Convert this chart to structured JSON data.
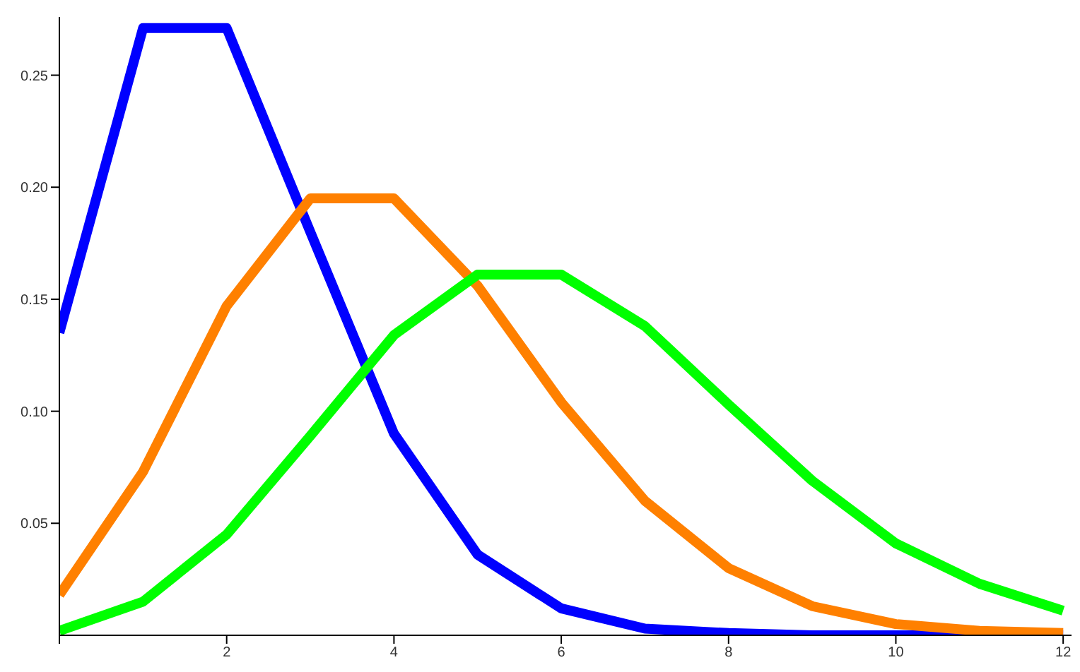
{
  "chart_data": {
    "type": "line",
    "x": [
      0,
      1,
      2,
      3,
      4,
      5,
      6,
      7,
      8,
      9,
      10,
      11,
      12
    ],
    "series": [
      {
        "color": "#0000ff",
        "values": [
          0.135,
          0.271,
          0.271,
          0.18,
          0.09,
          0.036,
          0.012,
          0.003,
          0.001,
          0.0,
          0.0,
          0.0,
          0.0
        ]
      },
      {
        "color": "#ff8000",
        "values": [
          0.018,
          0.073,
          0.147,
          0.195,
          0.195,
          0.156,
          0.104,
          0.06,
          0.03,
          0.013,
          0.005,
          0.002,
          0.001
        ]
      },
      {
        "color": "#00ff00",
        "values": [
          0.002,
          0.015,
          0.045,
          0.089,
          0.134,
          0.161,
          0.161,
          0.138,
          0.103,
          0.069,
          0.041,
          0.023,
          0.011
        ]
      }
    ],
    "xlim": [
      0,
      12.1
    ],
    "xticks": [
      {
        "value": 0,
        "label": null
      },
      2,
      4,
      6,
      8,
      10,
      12
    ],
    "ylim": [
      0,
      0.276
    ],
    "yticks": [
      {
        "value": 0.05,
        "label": "0.05"
      },
      {
        "value": 0.1,
        "label": "0.10"
      },
      {
        "value": 0.15,
        "label": "0.15"
      },
      {
        "value": 0.2,
        "label": "0.20"
      },
      {
        "value": 0.25,
        "label": "0.25"
      }
    ],
    "grid": false,
    "legend": false,
    "marker": "none",
    "line_style": "solid"
  }
}
